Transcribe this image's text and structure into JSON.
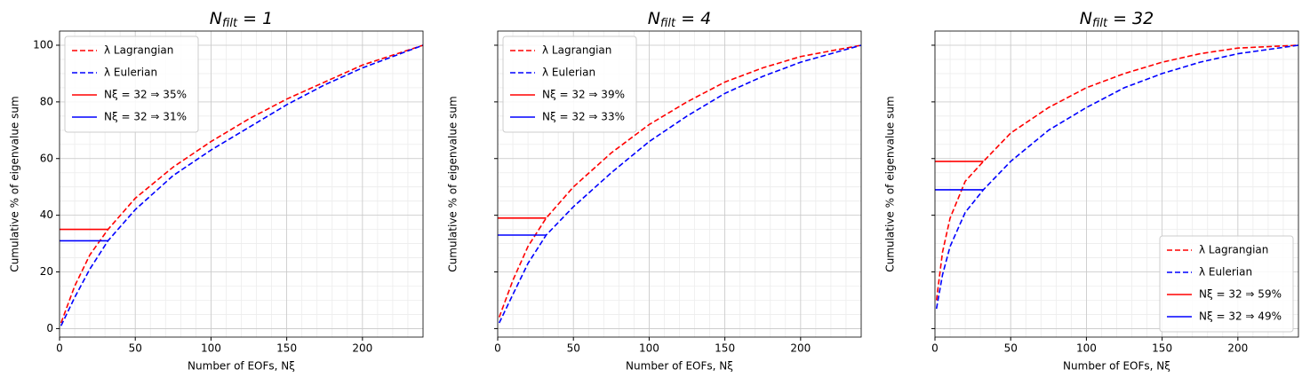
{
  "chart_data": [
    {
      "type": "line",
      "title": "N",
      "title_sub": "filt",
      "title_rest": " = 1",
      "xlabel": "Number of EOFs, Nξ",
      "ylabel": "Cumulative % of eigenvalue sum",
      "xlim": [
        0,
        240
      ],
      "ylim": [
        -3,
        105
      ],
      "xticks": [
        0,
        50,
        100,
        150,
        200
      ],
      "yticks": [
        0,
        20,
        40,
        60,
        80,
        100
      ],
      "grid": true,
      "minor_grid": [
        10,
        5
      ],
      "legend": "upper left",
      "series": [
        {
          "name": "λ Lagrangian",
          "color": "#ff0000",
          "linestyle": "dashed",
          "x": [
            1,
            10,
            20,
            32,
            50,
            75,
            100,
            125,
            150,
            175,
            200,
            240
          ],
          "values": [
            2,
            15,
            26,
            35,
            46,
            57,
            66,
            74,
            81,
            87,
            93,
            100
          ]
        },
        {
          "name": "λ Eulerian",
          "color": "#0000ff",
          "linestyle": "dashed",
          "x": [
            1,
            10,
            20,
            32,
            50,
            75,
            100,
            125,
            150,
            175,
            200,
            240
          ],
          "values": [
            1,
            11,
            21,
            31,
            42,
            54,
            63,
            71,
            79,
            86,
            92,
            100
          ]
        },
        {
          "name": "Nξ = 32 ⇒ 35%",
          "color": "#ff0000",
          "linestyle": "solid",
          "x": [
            0,
            32
          ],
          "values": [
            35,
            35
          ]
        },
        {
          "name": "Nξ = 32 ⇒ 31%",
          "color": "#0000ff",
          "linestyle": "solid",
          "x": [
            0,
            32
          ],
          "values": [
            31,
            31
          ]
        }
      ]
    },
    {
      "type": "line",
      "title": "N",
      "title_sub": "filt",
      "title_rest": " = 4",
      "xlabel": "Number of EOFs, Nξ",
      "ylabel": "Cumulative % of eigenvalue sum",
      "xlim": [
        0,
        240
      ],
      "ylim": [
        -3,
        105
      ],
      "xticks": [
        0,
        50,
        100,
        150,
        200
      ],
      "yticks": [
        0,
        20,
        40,
        60,
        80,
        100
      ],
      "grid": true,
      "minor_grid": [
        10,
        5
      ],
      "legend": "upper left",
      "series": [
        {
          "name": "λ Lagrangian",
          "color": "#ff0000",
          "linestyle": "dashed",
          "x": [
            1,
            10,
            20,
            32,
            50,
            75,
            100,
            125,
            150,
            175,
            200,
            240
          ],
          "values": [
            4,
            17,
            29,
            39,
            50,
            62,
            72,
            80,
            87,
            92,
            96,
            100
          ]
        },
        {
          "name": "λ Eulerian",
          "color": "#0000ff",
          "linestyle": "dashed",
          "x": [
            1,
            10,
            20,
            32,
            50,
            75,
            100,
            125,
            150,
            175,
            200,
            240
          ],
          "values": [
            2,
            12,
            23,
            33,
            43,
            55,
            66,
            75,
            83,
            89,
            94,
            100
          ]
        },
        {
          "name": "Nξ = 32 ⇒ 39%",
          "color": "#ff0000",
          "linestyle": "solid",
          "x": [
            0,
            32
          ],
          "values": [
            39,
            39
          ]
        },
        {
          "name": "Nξ = 32 ⇒ 33%",
          "color": "#0000ff",
          "linestyle": "solid",
          "x": [
            0,
            32
          ],
          "values": [
            33,
            33
          ]
        }
      ]
    },
    {
      "type": "line",
      "title": "N",
      "title_sub": "filt",
      "title_rest": " = 32",
      "xlabel": "Number of EOFs, Nξ",
      "ylabel": "Cumulative % of eigenvalue sum",
      "xlim": [
        0,
        240
      ],
      "ylim": [
        -3,
        105
      ],
      "xticks": [
        0,
        50,
        100,
        150,
        200
      ],
      "yticks": [
        0,
        20,
        40,
        60,
        80,
        100
      ],
      "grid": true,
      "minor_grid": [
        10,
        5
      ],
      "legend": "lower right",
      "series": [
        {
          "name": "λ Lagrangian",
          "color": "#ff0000",
          "linestyle": "dashed",
          "x": [
            1,
            5,
            10,
            20,
            32,
            50,
            75,
            100,
            125,
            150,
            175,
            200,
            240
          ],
          "values": [
            10,
            27,
            39,
            52,
            59,
            69,
            78,
            85,
            90,
            94,
            97,
            99,
            100
          ]
        },
        {
          "name": "λ Eulerian",
          "color": "#0000ff",
          "linestyle": "dashed",
          "x": [
            1,
            5,
            10,
            20,
            32,
            50,
            75,
            100,
            125,
            150,
            175,
            200,
            240
          ],
          "values": [
            7,
            19,
            29,
            41,
            49,
            59,
            70,
            78,
            85,
            90,
            94,
            97,
            100
          ]
        },
        {
          "name": "Nξ = 32 ⇒ 59%",
          "color": "#ff0000",
          "linestyle": "solid",
          "x": [
            0,
            32
          ],
          "values": [
            59,
            59
          ]
        },
        {
          "name": "Nξ = 32 ⇒ 49%",
          "color": "#0000ff",
          "linestyle": "solid",
          "x": [
            0,
            32
          ],
          "values": [
            49,
            49
          ]
        }
      ]
    }
  ]
}
